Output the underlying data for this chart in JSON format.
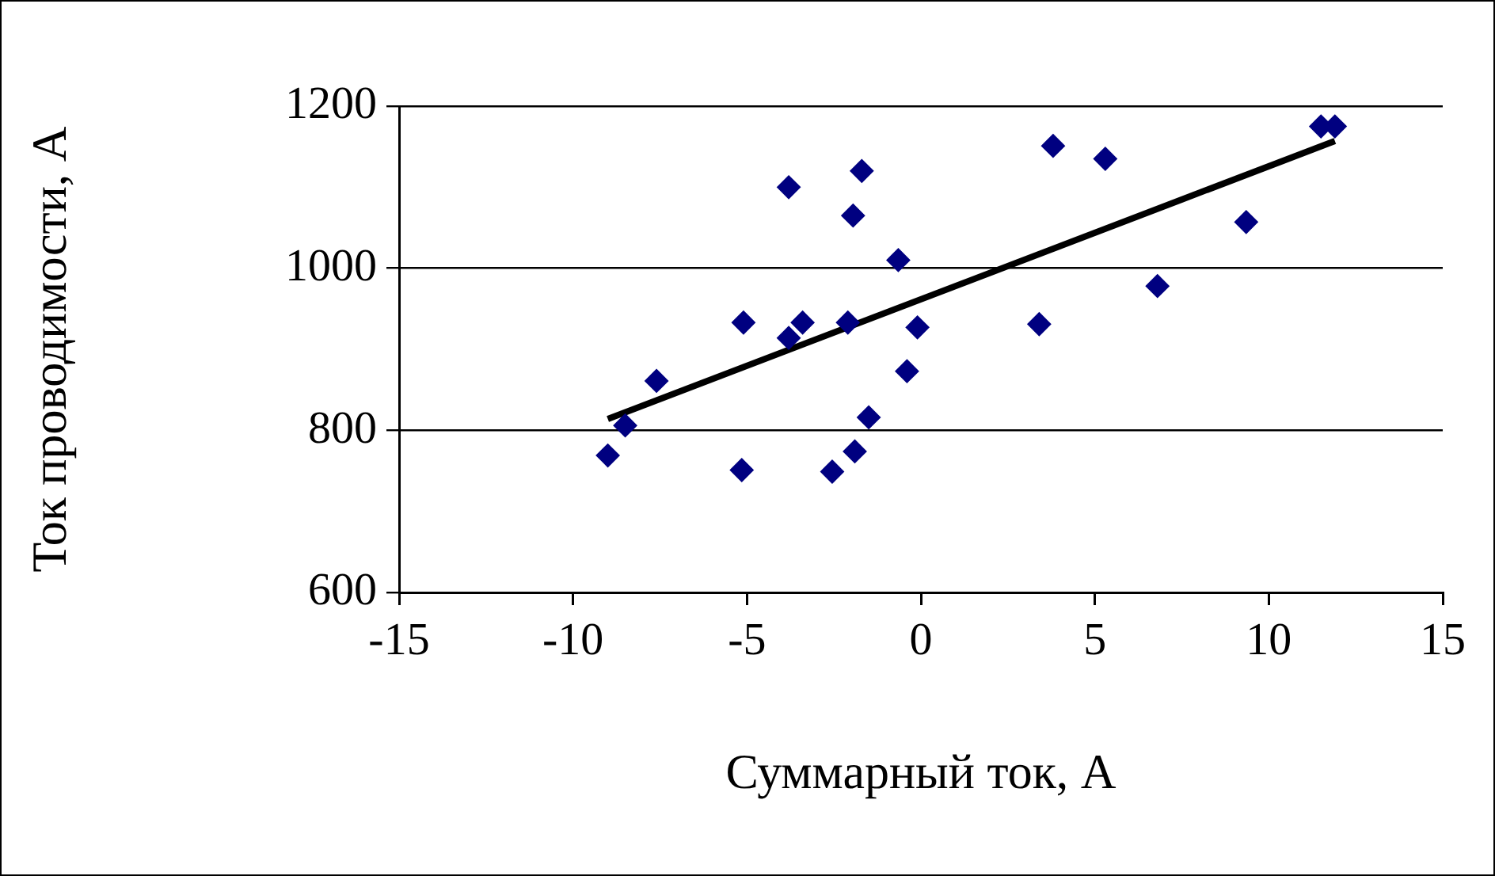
{
  "chart_data": {
    "type": "scatter",
    "xlabel": "Суммарный ток, А",
    "ylabel": "Ток проводимости, А",
    "xlim": [
      -15,
      15
    ],
    "xticks": [
      -15,
      -10,
      -5,
      0,
      5,
      10,
      15
    ],
    "ylim": [
      600,
      1200
    ],
    "yticks": [
      600,
      800,
      1000,
      1200
    ],
    "grid": "y",
    "legend": false,
    "marker": "diamond",
    "series": [
      {
        "color": "#000080",
        "x": [
          -9.0,
          -8.5,
          -7.6,
          -5.1,
          -5.15,
          -3.8,
          -3.8,
          -3.4,
          -2.55,
          -2.1,
          -1.95,
          -1.9,
          -1.7,
          -1.5,
          -0.65,
          -0.4,
          -0.1,
          3.4,
          3.8,
          5.3,
          6.8,
          9.35,
          11.5,
          11.9
        ],
        "values": [
          769,
          806,
          861,
          933,
          751,
          914,
          1100,
          933,
          749,
          933,
          1065,
          774,
          1120,
          816,
          1010,
          873,
          927,
          931,
          1151,
          1135,
          978,
          1057,
          1175,
          1175
        ]
      },
      {
        "type": "line",
        "color": "#000000",
        "marker": "none",
        "line_style": "solid",
        "x": [
          -9.0,
          11.9
        ],
        "values": [
          814,
          1157
        ]
      }
    ]
  }
}
